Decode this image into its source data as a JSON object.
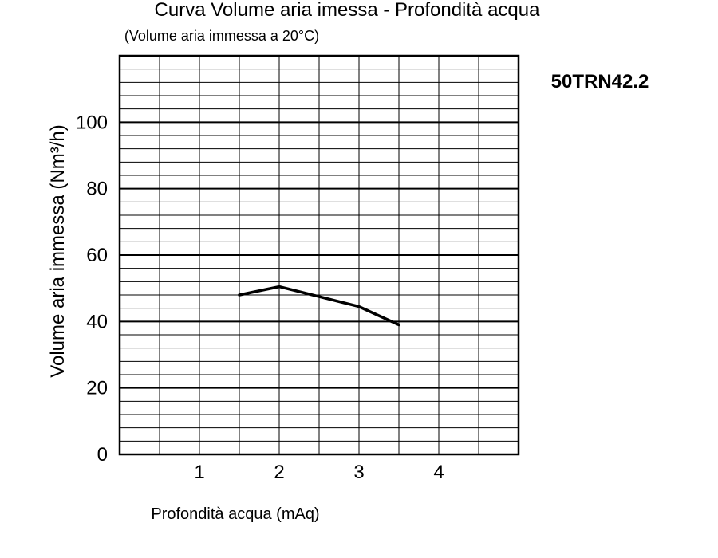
{
  "chart_data": {
    "type": "line",
    "title": "Curva Volume aria imessa - Profondità acqua",
    "subtitle": "(Volume aria immessa a 20°C)",
    "model": "50TRN42.2",
    "xlabel": "Profondità acqua (mAq)",
    "ylabel": "Volume aria immessa (Nm³/h)",
    "xlim": [
      0,
      5
    ],
    "ylim": [
      0,
      120
    ],
    "x_ticks": [
      1,
      2,
      3,
      4
    ],
    "x_tick_labels": [
      "1",
      "2",
      "3",
      "4"
    ],
    "y_ticks": [
      0,
      20,
      40,
      60,
      80,
      100
    ],
    "y_tick_labels": [
      "0",
      "20",
      "40",
      "60",
      "80",
      "100"
    ],
    "grid": true,
    "grid_x_step": 0.5,
    "grid_y_minor_step": 4,
    "grid_y_major_step": 20,
    "series": [
      {
        "x": [
          1.5,
          2.0,
          2.5,
          3.0,
          3.5
        ],
        "y": [
          48,
          50.5,
          47.5,
          44.5,
          39
        ]
      }
    ]
  }
}
